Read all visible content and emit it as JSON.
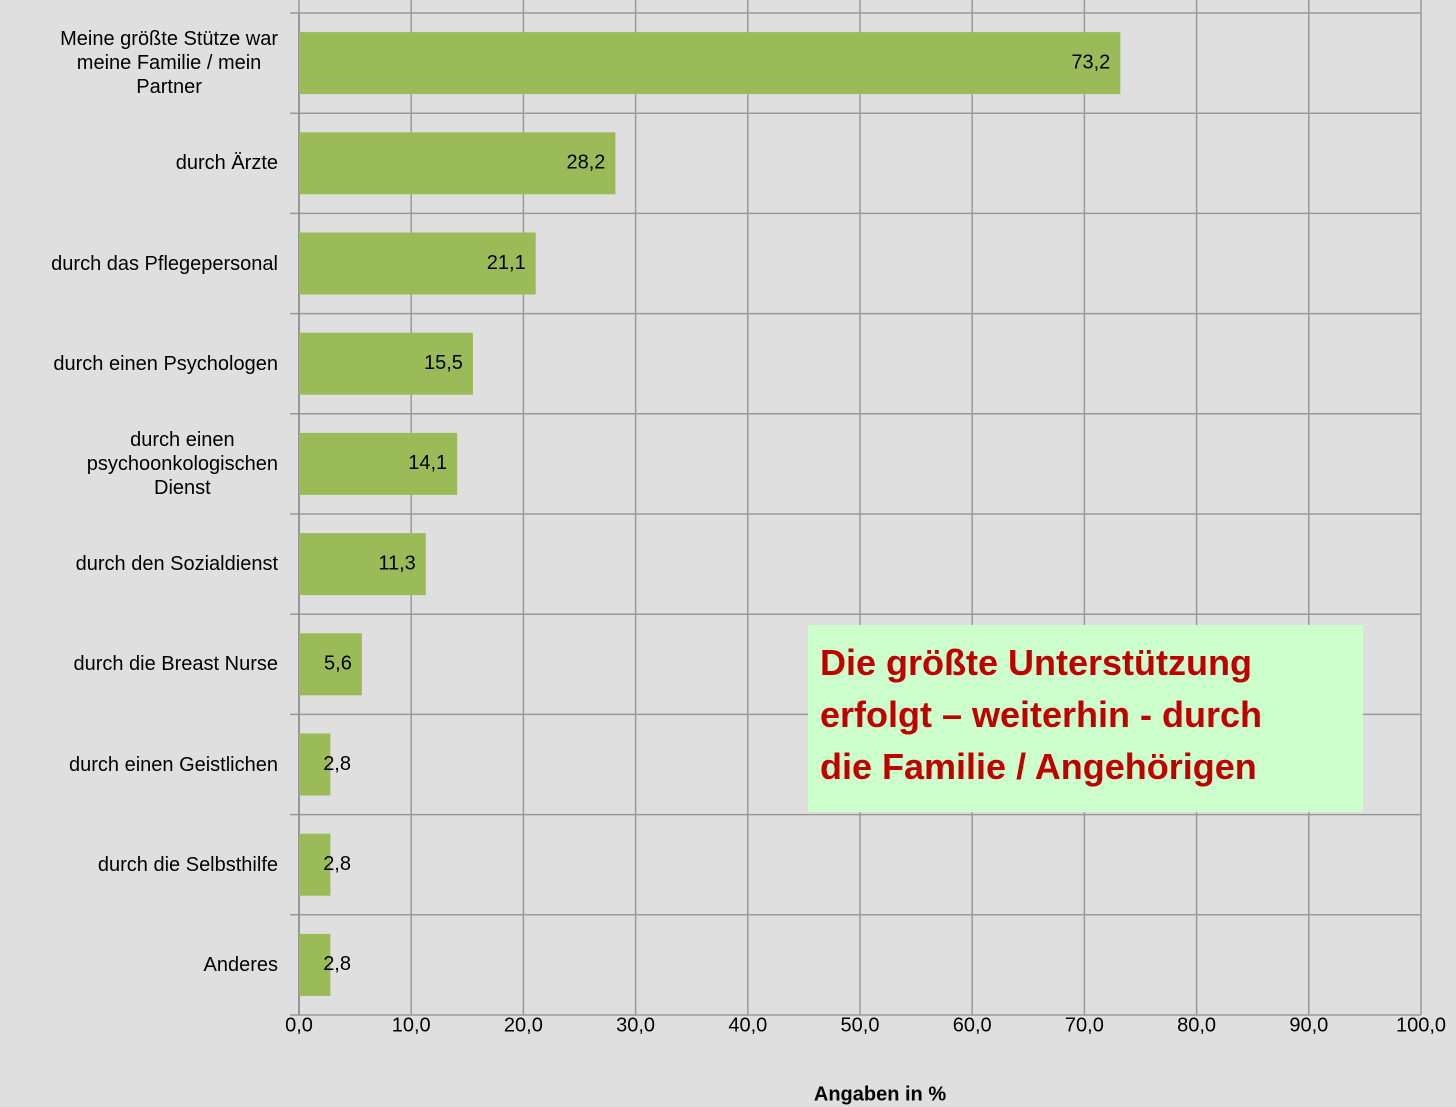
{
  "chart_data": {
    "type": "bar",
    "orientation": "horizontal",
    "categories": [
      "Meine größte Stütze war\nmeine Familie / mein\nPartner",
      "durch Ärzte",
      "durch das Pflegepersonal",
      "durch einen Psychologen",
      "durch einen\npsychoonkologischen\nDienst",
      "durch den Sozialdienst",
      "durch die Breast Nurse",
      "durch einen Geistlichen",
      "durch die Selbsthilfe",
      "Anderes"
    ],
    "values": [
      73.2,
      28.2,
      21.1,
      15.5,
      14.1,
      11.3,
      5.6,
      2.8,
      2.8,
      2.8
    ],
    "value_labels": [
      "73,2",
      "28,2",
      "21,1",
      "15,5",
      "14,1",
      "11,3",
      "5,6",
      "2,8",
      "2,8",
      "2,8"
    ],
    "color": "#9bbb59",
    "xlim": [
      0,
      100
    ],
    "xticks": [
      {
        "value": 0,
        "label": "0,0"
      },
      {
        "value": 10,
        "label": "10,0"
      },
      {
        "value": 20,
        "label": "20,0"
      },
      {
        "value": 30,
        "label": "30,0"
      },
      {
        "value": 40,
        "label": "40,0"
      },
      {
        "value": 50,
        "label": "50,0"
      },
      {
        "value": 60,
        "label": "60,0"
      },
      {
        "value": 70,
        "label": "70,0"
      },
      {
        "value": 80,
        "label": "80,0"
      },
      {
        "value": 90,
        "label": "90,0"
      },
      {
        "value": 100,
        "label": "100,0"
      }
    ],
    "xlabel": "Angaben in %",
    "grid": true,
    "annotation": "Die größte Unterstützung\nerfolgt – weiterhin - durch\ndie Familie / Angehörigen"
  }
}
